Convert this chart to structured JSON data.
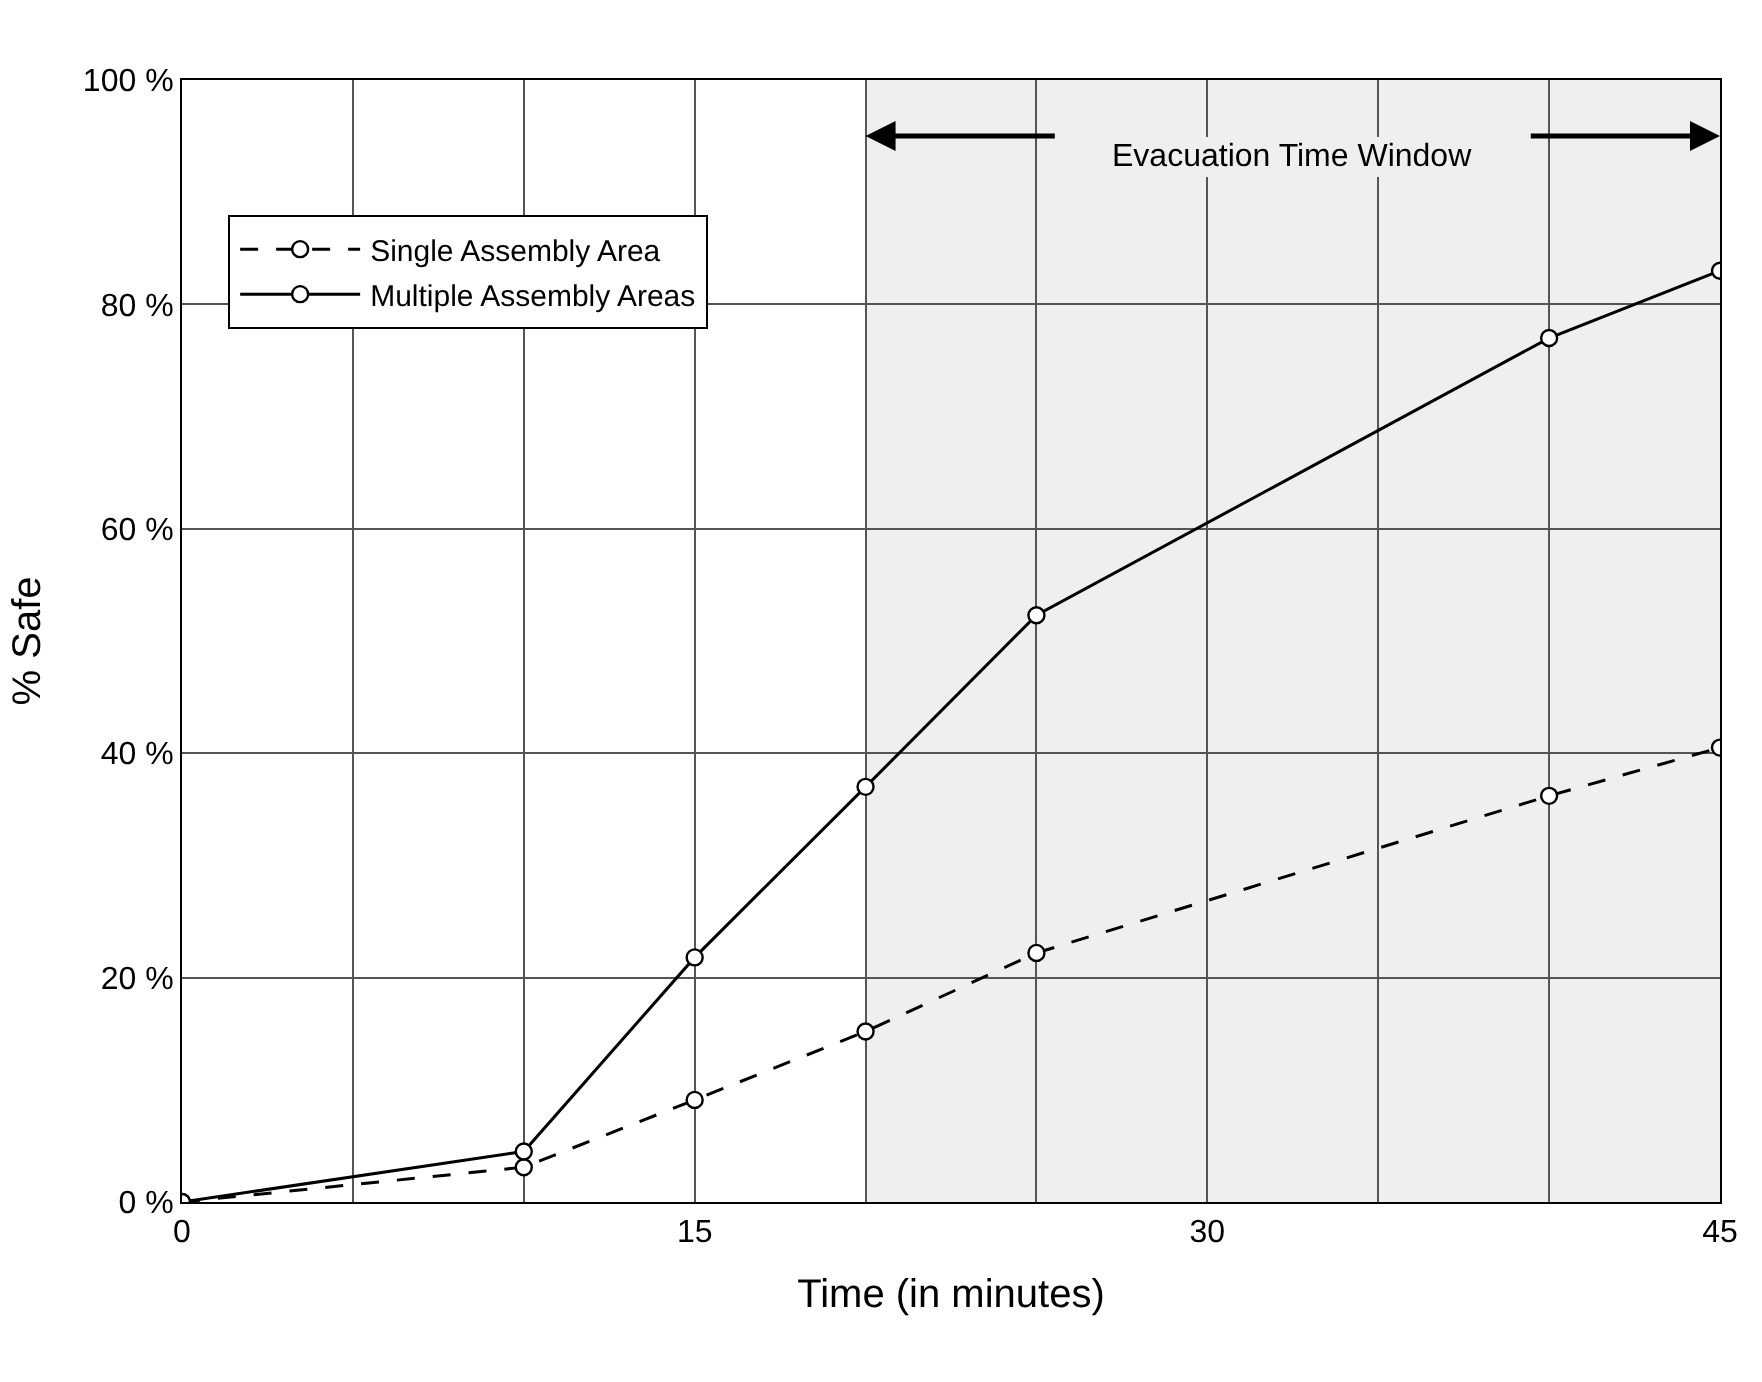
{
  "chart_data": {
    "type": "line",
    "xlabel": "Time (in minutes)",
    "ylabel": "% Safe",
    "x": [
      0,
      10,
      15,
      20,
      25,
      40,
      45
    ],
    "series": [
      {
        "name": "Single Assembly Area",
        "color": "#000000",
        "line_style": "dashed",
        "values": [
          0,
          3.1,
          9.1,
          15.2,
          22.2,
          36.2,
          40.5
        ]
      },
      {
        "name": "Multiple Assembly Areas",
        "color": "#000000",
        "line_style": "solid",
        "values": [
          0,
          4.5,
          21.8,
          37,
          52.3,
          77,
          83
        ]
      }
    ],
    "xlim": [
      0,
      45
    ],
    "xticks": [
      0,
      {
        "value": 5,
        "label": null
      },
      {
        "value": 10,
        "label": null
      },
      15,
      {
        "value": 20,
        "label": null
      },
      {
        "value": 25,
        "label": null
      },
      30,
      {
        "value": 35,
        "label": null
      },
      {
        "value": 40,
        "label": null
      },
      45
    ],
    "ylim": [
      0,
      100
    ],
    "yticks": [
      {
        "value": 0,
        "label": "0 %"
      },
      {
        "value": 20,
        "label": "20 %"
      },
      {
        "value": 40,
        "label": "40 %"
      },
      {
        "value": 60,
        "label": "60 %"
      },
      {
        "value": 80,
        "label": "80 %"
      },
      {
        "value": 100,
        "label": "100 %"
      }
    ],
    "bands": [
      {
        "axis": "x",
        "from": 20,
        "to": 45,
        "label": "Evacuation Time Window",
        "color": "#efefef"
      }
    ],
    "grid": true,
    "legend": "top left",
    "marker": "circle"
  }
}
